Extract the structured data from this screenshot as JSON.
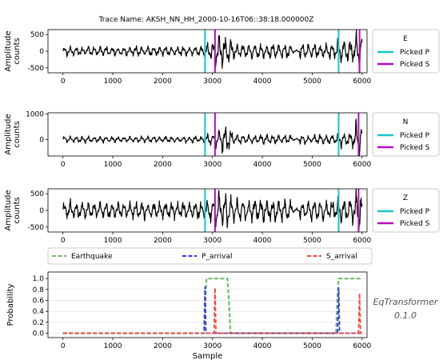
{
  "title": "Trace Name: AKSH_NN_HH_2000-10-16T06::38:18.000000Z",
  "model": {
    "name": "EqTransformer",
    "version": "0.1.0"
  },
  "colors": {
    "trace": "#000000",
    "picked_p": "#19c3cc",
    "picked_s": "#b40fbf",
    "earthquake": "#6dbf6d",
    "p_arrival": "#3b3bd6",
    "s_arrival": "#ef4b3b"
  },
  "chart_data": [
    {
      "type": "line",
      "channel": "E",
      "ylabel": "Amplitude\ncounts",
      "xlim": [
        -300,
        6100
      ],
      "ylim": [
        -650,
        650
      ],
      "yticks": [
        -500,
        0,
        500
      ],
      "xticks": [
        0,
        1000,
        2000,
        3000,
        4000,
        5000,
        6000
      ],
      "legend": [
        "E",
        "Picked P",
        "Picked S"
      ],
      "picked_p": [
        2850,
        5530
      ],
      "picked_s": [
        3050,
        5950
      ],
      "segments": [
        {
          "x": [
            0,
            2850
          ],
          "amp": 130
        },
        {
          "x": [
            2850,
            3050
          ],
          "amp": 260
        },
        {
          "x": [
            3050,
            3400
          ],
          "amp": 420
        },
        {
          "x": [
            3400,
            4600
          ],
          "amp": 200
        },
        {
          "x": [
            4600,
            4750
          ],
          "amp": 40
        },
        {
          "x": [
            4750,
            5500
          ],
          "amp": 200
        },
        {
          "x": [
            5500,
            5850
          ],
          "amp": 320
        },
        {
          "x": [
            5850,
            6000
          ],
          "amp": 620
        }
      ]
    },
    {
      "type": "line",
      "channel": "N",
      "ylabel": "Amplitude\ncounts",
      "xlim": [
        -300,
        6100
      ],
      "ylim": [
        -650,
        1050
      ],
      "yticks": [
        0,
        1000
      ],
      "xticks": [
        0,
        1000,
        2000,
        3000,
        4000,
        5000,
        6000
      ],
      "legend": [
        "N",
        "Picked P",
        "Picked S"
      ],
      "picked_p": [
        2850,
        5530
      ],
      "picked_s": [
        3050,
        5930
      ],
      "segments": [
        {
          "x": [
            0,
            2850
          ],
          "amp": 110
        },
        {
          "x": [
            2850,
            3050
          ],
          "amp": 200
        },
        {
          "x": [
            3050,
            3400
          ],
          "amp": 420
        },
        {
          "x": [
            3400,
            4600
          ],
          "amp": 160
        },
        {
          "x": [
            4600,
            4750
          ],
          "amp": 40
        },
        {
          "x": [
            4750,
            5500
          ],
          "amp": 170
        },
        {
          "x": [
            5500,
            5850
          ],
          "amp": 250
        },
        {
          "x": [
            5850,
            6000
          ],
          "amp": 700
        }
      ]
    },
    {
      "type": "line",
      "channel": "Z",
      "ylabel": "Amplitude\ncounts",
      "xlim": [
        -300,
        6100
      ],
      "ylim": [
        -650,
        650
      ],
      "yticks": [
        -500,
        0,
        500
      ],
      "xticks": [
        0,
        1000,
        2000,
        3000,
        4000,
        5000,
        6000
      ],
      "legend": [
        "Z",
        "Picked P",
        "Picked S"
      ],
      "picked_p": [
        2850,
        5530
      ],
      "picked_s": [
        3050,
        5930
      ],
      "segments": [
        {
          "x": [
            0,
            2850
          ],
          "amp": 230
        },
        {
          "x": [
            2850,
            3050
          ],
          "amp": 380
        },
        {
          "x": [
            3050,
            3400
          ],
          "amp": 480
        },
        {
          "x": [
            3400,
            4600
          ],
          "amp": 300
        },
        {
          "x": [
            4600,
            4750
          ],
          "amp": 60
        },
        {
          "x": [
            4750,
            5500
          ],
          "amp": 280
        },
        {
          "x": [
            5500,
            5850
          ],
          "amp": 350
        },
        {
          "x": [
            5850,
            6000
          ],
          "amp": 600
        }
      ]
    },
    {
      "type": "line",
      "xlabel": "Sample",
      "ylabel": "Probability",
      "xlim": [
        -300,
        6100
      ],
      "ylim": [
        -0.08,
        1.12
      ],
      "yticks": [
        0.0,
        0.2,
        0.4,
        0.6,
        0.8,
        1.0
      ],
      "ytick_labels": [
        "0.0",
        "0.2",
        "0.4",
        "0.6",
        "0.8",
        "1.0"
      ],
      "xticks": [
        0,
        1000,
        2000,
        3000,
        4000,
        5000,
        6000
      ],
      "legend": [
        "Earthquake",
        "P_arrival",
        "S_arrival"
      ],
      "series": [
        {
          "name": "Earthquake",
          "x": [
            0,
            2840,
            2860,
            2880,
            3300,
            3330,
            3360,
            5480,
            5500,
            5530,
            6000
          ],
          "y": [
            0,
            0,
            0.6,
            1.0,
            1.0,
            0.6,
            0,
            0,
            0.6,
            1.0,
            1.0
          ]
        },
        {
          "name": "P_arrival",
          "x": [
            0,
            2830,
            2850,
            2870,
            5510,
            5530,
            5550,
            6000
          ],
          "y": [
            0,
            0,
            0.85,
            0,
            0,
            0.83,
            0,
            0
          ]
        },
        {
          "name": "S_arrival",
          "x": [
            0,
            3030,
            3050,
            3070,
            5930,
            5950,
            5970,
            6000
          ],
          "y": [
            0,
            0,
            0.83,
            0,
            0,
            0.73,
            0,
            0
          ]
        }
      ]
    }
  ]
}
